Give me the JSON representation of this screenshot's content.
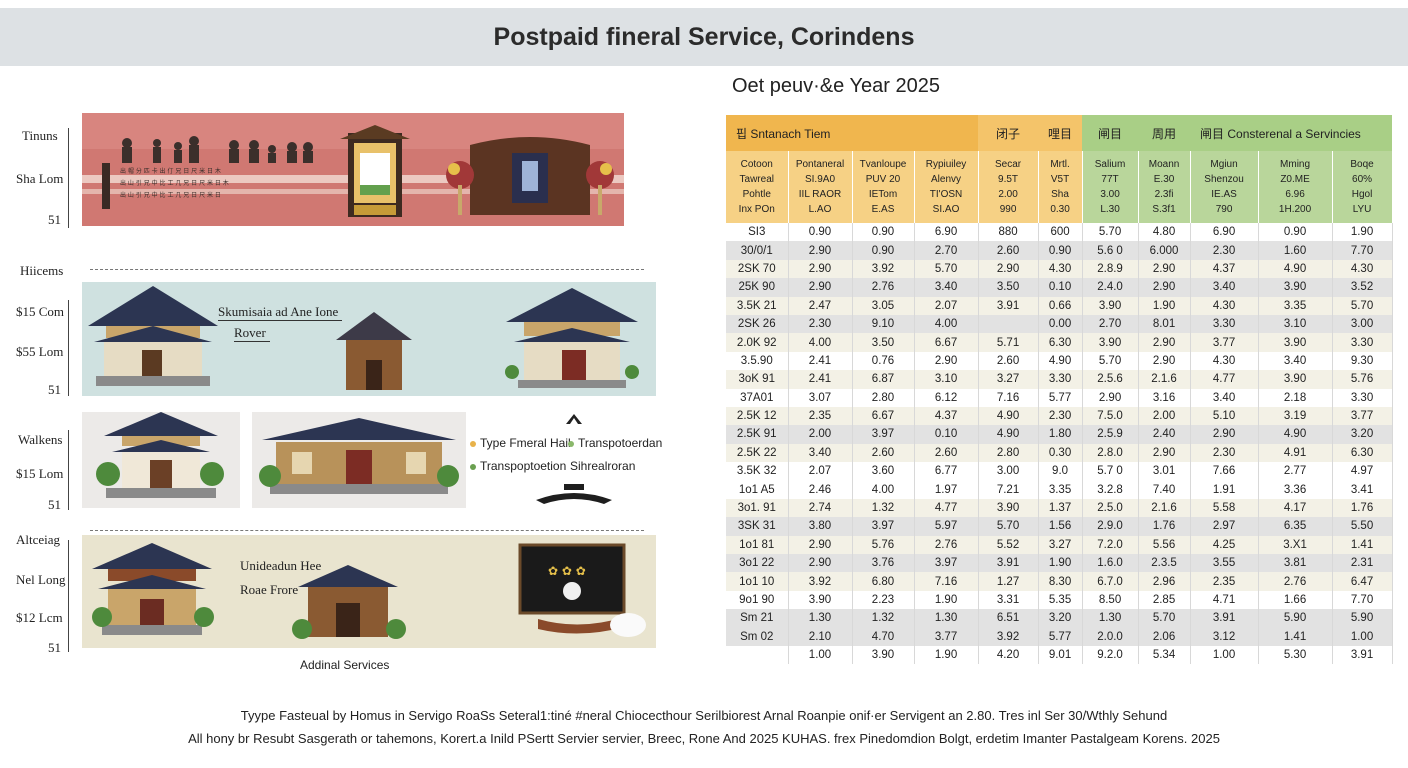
{
  "title": "Postpaid fineral Service, Corindens",
  "left_panel": {
    "bands": [
      {
        "labels": [
          "Tinuns",
          "Sha Lom",
          "51"
        ]
      },
      {
        "labels": [
          "Hiicems",
          "$15 Com",
          "$55 Lom",
          "51"
        ],
        "text_1": "Skumisaia ad Ane Ione",
        "text_2": "Rover"
      },
      {
        "labels": [
          "Walkens",
          "$15 Lom",
          "51"
        ]
      },
      {
        "labels": [
          "Altceiag",
          "Nel Long",
          "$12 Lcm",
          "51"
        ],
        "text_1": "Unideadun Hee",
        "text_2": "Roae Frore"
      }
    ],
    "legend": {
      "item_1": "Type Fmeral Hail",
      "item_2": "Transpotoerdan",
      "item_3": "Transpoptoetion",
      "item_4": "Sihrealroran"
    },
    "caption": "Addinal Services"
  },
  "table": {
    "heading": "Oet peuv·&e Year 2025",
    "groups": [
      {
        "label": "핍 Sntanach Tiem"
      },
      {
        "label": "闭子"
      },
      {
        "label": "哩目"
      },
      {
        "label": "闸目"
      },
      {
        "label": "周用"
      },
      {
        "label": "闸目   Consterenal a Servincies"
      }
    ],
    "subheaders": [
      "Cotoon\nTawreal\nPohtle\nInx POn",
      "Pontaneral\nSI.9A0\nIIL RAOR\nL.AO",
      "Tvanloupe\nPUV 20\nIETom\nE.AS",
      "Rypiuiley\nAlenvy\nTI'OSN\nSI.AO",
      "Secar\n9.5T\n2.00\n990",
      "Mrtl.\nV5T\nSha\n0.30",
      "Salium\n77T\n3.00\nL.30",
      "Moann\nE.30\n2.3fi\nS.3f1",
      "Mgiun\nShenzou\nIE.AS\n790",
      "Mming\nZ0.ME\n6.96\n1H.200",
      "Boqe\n60%\nHgol\nLYU"
    ],
    "rows": [
      [
        "SI3",
        "0.90",
        "0.90",
        "6.90",
        "880",
        "600",
        "5.70",
        "4.80",
        "6.90",
        "0.90",
        "1.90"
      ],
      [
        "30/0/1",
        "2.90",
        "0.90",
        "2.70",
        "2.60",
        "0.90",
        "5.6 0",
        "6.000",
        "2.30",
        "1.60",
        "7.70"
      ],
      [
        "2SK 70",
        "2.90",
        "3.92",
        "5.70",
        "2.90",
        "4.30",
        "2.8.9",
        "2.90",
        "4.37",
        "4.90",
        "4.30"
      ],
      [
        "25K 90",
        "2.90",
        "2.76",
        "3.40",
        "3.50",
        "0.10",
        "2.4.0",
        "2.90",
        "3.40",
        "3.90",
        "3.52"
      ],
      [
        "3.5K 21",
        "2.47",
        "3.05",
        "2.07",
        "3.91",
        "0.66",
        "3.90",
        "1.90",
        "4.30",
        "3.35",
        "5.70"
      ],
      [
        "2SK 26",
        "2.30",
        "9.10",
        "4.00",
        "",
        "0.00",
        "2.70",
        "8.01",
        "3.30",
        "3.10",
        "3.00"
      ],
      [
        "2.0K 92",
        "4.00",
        "3.50",
        "6.67",
        "5.71",
        "6.30",
        "3.90",
        "2.90",
        "3.77",
        "3.90",
        "3.30"
      ],
      [
        "3.5.90",
        "2.41",
        "0.76",
        "2.90",
        "2.60",
        "4.90",
        "5.70",
        "2.90",
        "4.30",
        "3.40",
        "9.30"
      ],
      [
        "3oK 91",
        "2.41",
        "6.87",
        "3.10",
        "3.27",
        "3.30",
        "2.5.6",
        "2.1.6",
        "4.77",
        "3.90",
        "5.76"
      ],
      [
        "37A01",
        "3.07",
        "2.80",
        "6.12",
        "7.16",
        "5.77",
        "2.90",
        "3.16",
        "3.40",
        "2.18",
        "3.30"
      ],
      [
        "2.5K 12",
        "2.35",
        "6.67",
        "4.37",
        "4.90",
        "2.30",
        "7.5.0",
        "2.00",
        "5.10",
        "3.19",
        "3.77"
      ],
      [
        "2.5K 91",
        "2.00",
        "3.97",
        "0.10",
        "4.90",
        "1.80",
        "2.5.9",
        "2.40",
        "2.90",
        "4.90",
        "3.20"
      ],
      [
        "2.5K 22",
        "3.40",
        "2.60",
        "2.60",
        "2.80",
        "0.30",
        "2.8.0",
        "2.90",
        "2.30",
        "4.91",
        "6.30"
      ],
      [
        "3.5K 32",
        "2.07",
        "3.60",
        "6.77",
        "3.00",
        "9.0",
        "5.7 0",
        "3.01",
        "7.66",
        "2.77",
        "4.97"
      ],
      [
        "1o1 A5",
        "2.46",
        "4.00",
        "1.97",
        "7.21",
        "3.35",
        "3.2.8",
        "7.40",
        "1.91",
        "3.36",
        "3.41"
      ],
      [
        "3o1. 91",
        "2.74",
        "1.32",
        "4.77",
        "3.90",
        "1.37",
        "2.5.0",
        "2.1.6",
        "5.58",
        "4.17",
        "1.76"
      ],
      [
        "3SK 31",
        "3.80",
        "3.97",
        "5.97",
        "5.70",
        "1.56",
        "2.9.0",
        "1.76",
        "2.97",
        "6.35",
        "5.50"
      ],
      [
        "1o1 81",
        "2.90",
        "5.76",
        "2.76",
        "5.52",
        "3.27",
        "7.2.0",
        "5.56",
        "4.25",
        "3.X1",
        "1.41"
      ],
      [
        "3o1 22",
        "2.90",
        "3.76",
        "3.97",
        "3.91",
        "1.90",
        "1.6.0",
        "2.3.5",
        "3.55",
        "3.81",
        "2.31"
      ],
      [
        "1o1 10",
        "3.92",
        "6.80",
        "7.16",
        "1.27",
        "8.30",
        "6.7.0",
        "2.96",
        "2.35",
        "2.76",
        "6.47"
      ],
      [
        "9o1 90",
        "3.90",
        "2.23",
        "1.90",
        "3.31",
        "5.35",
        "8.50",
        "2.85",
        "4.71",
        "1.66",
        "7.70"
      ],
      [
        "Sm 21",
        "1.30",
        "1.32",
        "1.30",
        "6.51",
        "3.20",
        "1.30",
        "5.70",
        "3.91",
        "5.90",
        "5.90"
      ],
      [
        "Sm 02",
        "2.10",
        "4.70",
        "3.77",
        "3.92",
        "5.77",
        "2.0.0",
        "2.06",
        "3.12",
        "1.41",
        "1.00"
      ],
      [
        "",
        "1.00",
        "3.90",
        "1.90",
        "4.20",
        "9.01",
        "9.2.0",
        "5.34",
        "1.00",
        "5.30",
        "3.91"
      ]
    ]
  },
  "footnotes": [
    "Tyype Fasteual by Homus in Servigo RoaSs Seteral1:tiné #neral Chiocecthour Serilbiorest Arnal Roanpie onif·er Servigent an 2.80. Tres inl Ser 30/Wthly Sehund",
    "All hony br Resubt Sasgerath or tahemons, Korert.a Inild PSertt Servier servier, Breec, Rone And 2025 KUHAS. frex Pinedomdion Bolgt, erdetim Imanter Pastalgeam Korens. 2025"
  ]
}
